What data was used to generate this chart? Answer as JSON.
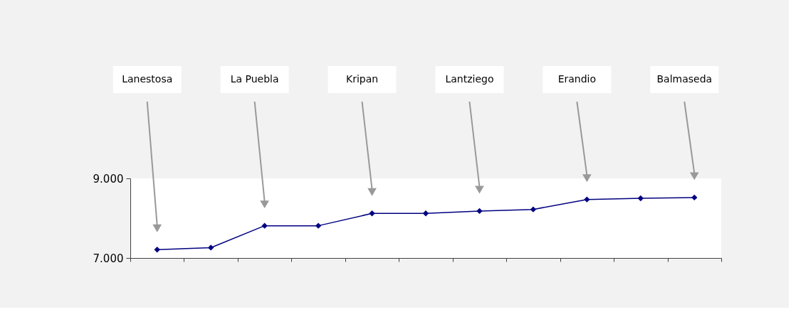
{
  "chart_data": {
    "type": "line",
    "categories": [
      null,
      null,
      null,
      null,
      null,
      null,
      null,
      null,
      null,
      null,
      null
    ],
    "series": [
      {
        "color": "#000080",
        "values": [
          7210,
          7260,
          7810,
          7810,
          8120,
          8120,
          8180,
          8220,
          8470,
          8500,
          8520
        ]
      }
    ],
    "ylim": [
      7000,
      9000
    ],
    "yticks": [
      {
        "value": 7000,
        "label": "7.000"
      },
      {
        "value": 9000,
        "label": "9.000"
      }
    ],
    "marker": "diamond",
    "line_style": "solid",
    "annotations": [
      "Lanestosa",
      "La Puebla",
      "Kripan",
      "Lantziego",
      "Erandio",
      "Balmaseda"
    ]
  }
}
